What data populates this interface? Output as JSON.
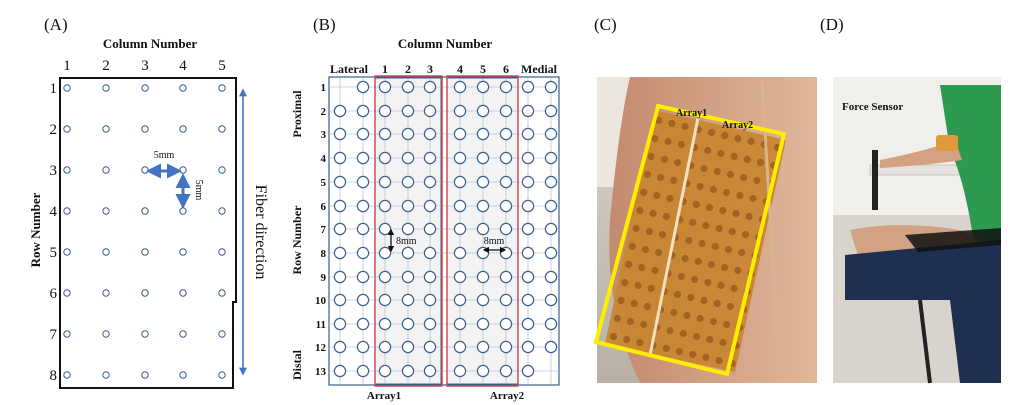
{
  "panels": {
    "a": {
      "label": "(A)",
      "column_title": "Column Number",
      "row_title": "Row Number",
      "columns": [
        "1",
        "2",
        "3",
        "4",
        "5"
      ],
      "rows": [
        "1",
        "2",
        "3",
        "4",
        "5",
        "6",
        "7",
        "8"
      ],
      "h_spacing": "5mm",
      "v_spacing": "5mm",
      "fiber_label": "Fiber direction"
    },
    "b": {
      "label": "(B)",
      "column_title": "Column Number",
      "row_title": "Row Number",
      "lateral": "Lateral",
      "medial": "Medial",
      "proximal": "Proximal",
      "distal": "Distal",
      "columns": [
        "1",
        "2",
        "3",
        "4",
        "5",
        "6"
      ],
      "rows": [
        "1",
        "2",
        "3",
        "4",
        "5",
        "6",
        "7",
        "8",
        "9",
        "10",
        "11",
        "12",
        "13"
      ],
      "v_spacing": "8mm",
      "h_spacing": "8mm",
      "array1": "Array1",
      "array2": "Array2"
    },
    "c": {
      "label": "(C)",
      "array1": "Array1",
      "array2": "Array2"
    },
    "d": {
      "label": "(D)",
      "force_sensor": "Force Sensor"
    }
  },
  "colors": {
    "electrode": "#3a5f8a",
    "arrow": "#4472c4",
    "array_border": "#d0404a",
    "grid_border": "#3a5f8a",
    "highlight": "#ffee00"
  }
}
